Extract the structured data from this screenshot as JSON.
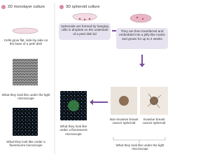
{
  "left": {
    "title": "2D monolayer culture",
    "description": "Cells grow flat, side-by-side on the base of a petri dish",
    "light_caption": "What they look like under the light microscope",
    "fluorescent_caption": "What they look like under a fluorescent microscope"
  },
  "right": {
    "title": "3D spheroid culture",
    "step_1": "Spheroids are formed by hanging cells in droplets on the underside of a petri dish lid",
    "step_2": "They are then transferred and embedded into a jelly-like matrix and grown for up to 4 weeks",
    "fluorescent_caption": "What they look like under a fluorescent microscope",
    "non_invasive_label": "Non-invasive breast cancer spheroid",
    "invasive_label": "Invasive breast cancer spheroid",
    "light_caption": "What they look like under the light microscope"
  }
}
